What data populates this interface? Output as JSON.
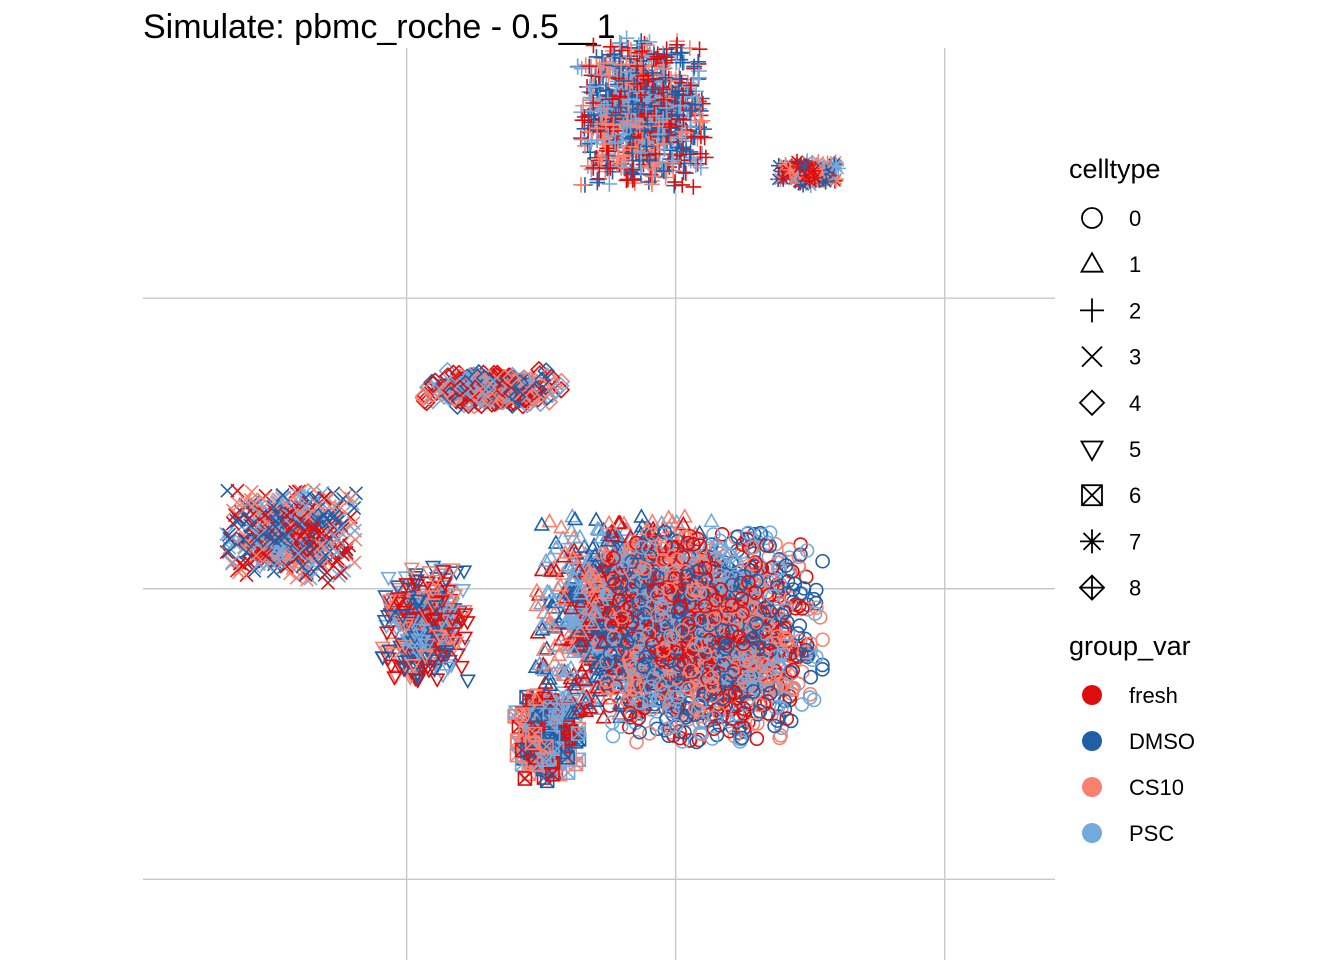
{
  "chart_data": {
    "type": "scatter",
    "title": "Simulate: pbmc_roche - 0.5__1",
    "xlabel": "",
    "ylabel": "",
    "grid": true,
    "axis_ticks_visible": false,
    "legend_position": "right",
    "shape_legend": {
      "title": "celltype",
      "items": [
        {
          "label": "0",
          "shape": "circle-open"
        },
        {
          "label": "1",
          "shape": "triangle-open"
        },
        {
          "label": "2",
          "shape": "plus"
        },
        {
          "label": "3",
          "shape": "cross"
        },
        {
          "label": "4",
          "shape": "diamond-open"
        },
        {
          "label": "5",
          "shape": "triangle-down-open"
        },
        {
          "label": "6",
          "shape": "square-cross"
        },
        {
          "label": "7",
          "shape": "asterisk"
        },
        {
          "label": "8",
          "shape": "diamond-plus"
        }
      ]
    },
    "color_legend": {
      "title": "group_var",
      "items": [
        {
          "label": "fresh",
          "color": "#DE0D0D"
        },
        {
          "label": "DMSO",
          "color": "#1F5FA8"
        },
        {
          "label": "CS10",
          "color": "#F8806F"
        },
        {
          "label": "PSC",
          "color": "#74A9DC"
        }
      ]
    },
    "clusters": [
      {
        "celltype": "2",
        "center": [
          3.7,
          6.3
        ],
        "spread": [
          0.42,
          0.48
        ],
        "n": 900
      },
      {
        "celltype": "7",
        "center": [
          4.95,
          5.85
        ],
        "spread": [
          0.2,
          0.08
        ],
        "n": 160
      },
      {
        "celltype": "4",
        "center": [
          2.6,
          4.25
        ],
        "spread": [
          0.45,
          0.12
        ],
        "n": 380
      },
      {
        "celltype": "3",
        "center": [
          1.1,
          3.15
        ],
        "spread": [
          0.42,
          0.3
        ],
        "n": 520
      },
      {
        "celltype": "5",
        "center": [
          2.1,
          2.5
        ],
        "spread": [
          0.28,
          0.38
        ],
        "n": 380
      },
      {
        "celltype": "6",
        "center": [
          3.0,
          1.65
        ],
        "spread": [
          0.22,
          0.3
        ],
        "n": 240
      },
      {
        "celltype": "1",
        "center": [
          3.6,
          2.55
        ],
        "spread": [
          0.6,
          0.65
        ],
        "n": 1300
      },
      {
        "celltype": "0",
        "center": [
          4.25,
          2.4
        ],
        "spread": [
          0.7,
          0.68
        ],
        "n": 1600
      }
    ]
  }
}
